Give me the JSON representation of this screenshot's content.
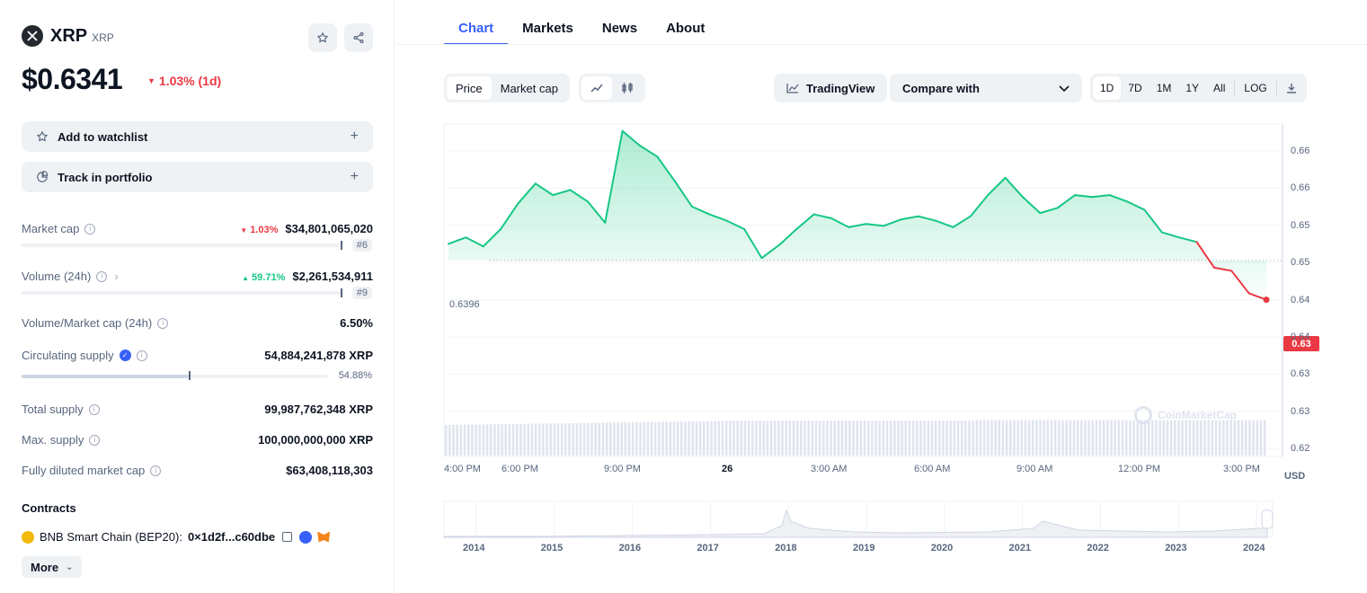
{
  "coin": {
    "name": "XRP",
    "symbol": "XRP",
    "logo_icon": "xrp-logo-icon"
  },
  "price": {
    "value": "$0.6341",
    "change": "1.03% (1d)",
    "direction": "down"
  },
  "actions": {
    "watchlist": "Add to watchlist",
    "portfolio": "Track in portfolio",
    "plus": "+"
  },
  "stats": {
    "market_cap": {
      "label": "Market cap",
      "change": "1.03%",
      "value": "$34,801,065,020",
      "rank": "#6"
    },
    "volume": {
      "label": "Volume (24h)",
      "change": "59.71%",
      "value": "$2,261,534,911",
      "rank": "#9"
    },
    "vol_mcap": {
      "label": "Volume/Market cap (24h)",
      "value": "6.50%"
    },
    "circulating": {
      "label": "Circulating supply",
      "value": "54,884,241,878 XRP",
      "percent": "54.88%",
      "fraction": 0.5488
    },
    "total_supply": {
      "label": "Total supply",
      "value": "99,987,762,348 XRP"
    },
    "max_supply": {
      "label": "Max. supply",
      "value": "100,000,000,000 XRP"
    },
    "fdv": {
      "label": "Fully diluted market cap",
      "value": "$63,408,118,303"
    }
  },
  "contracts": {
    "title": "Contracts",
    "chain": "BNB Smart Chain (BEP20):",
    "address": "0×1d2f...c60dbe",
    "more": "More"
  },
  "tabs": [
    "Chart",
    "Markets",
    "News",
    "About"
  ],
  "toolbar": {
    "price": "Price",
    "market_cap": "Market cap",
    "tradingview": "TradingView",
    "compare": "Compare with",
    "ranges": [
      "1D",
      "7D",
      "1M",
      "1Y",
      "All"
    ],
    "log": "LOG"
  },
  "chart": {
    "reference_label": "0.6396",
    "current_label": "0.63",
    "currency": "USD",
    "watermark": "CoinMarketCap",
    "y_ticks": [
      "0.66",
      "0.66",
      "0.65",
      "0.65",
      "0.64",
      "0.64",
      "0.63",
      "0.63",
      "0.62"
    ],
    "x_ticks": [
      "4:00 PM",
      "6:00 PM",
      "9:00 PM",
      "26",
      "3:00 AM",
      "6:00 AM",
      "9:00 AM",
      "12:00 PM",
      "3:00 PM"
    ],
    "years": [
      "2014",
      "2015",
      "2016",
      "2017",
      "2018",
      "2019",
      "2020",
      "2021",
      "2022",
      "2023",
      "2024"
    ],
    "colors": {
      "up": "#16c784",
      "down": "#ea3943",
      "accent": "#3861fb"
    }
  },
  "chart_data": {
    "type": "line",
    "xlabel": "",
    "ylabel": "USD",
    "ylim": [
      0.62,
      0.662
    ],
    "reference": 0.6396,
    "x": [
      "4:00 PM",
      "4:30 PM",
      "5:00 PM",
      "5:30 PM",
      "6:00 PM",
      "6:30 PM",
      "7:00 PM",
      "7:30 PM",
      "8:00 PM",
      "8:30 PM",
      "9:00 PM",
      "9:30 PM",
      "10:00 PM",
      "10:30 PM",
      "11:00 PM",
      "11:30 PM",
      "12:00 AM",
      "12:30 AM",
      "1:00 AM",
      "1:30 AM",
      "2:00 AM",
      "2:30 AM",
      "3:00 AM",
      "3:30 AM",
      "4:00 AM",
      "4:30 AM",
      "5:00 AM",
      "5:30 AM",
      "6:00 AM",
      "6:30 AM",
      "7:00 AM",
      "7:30 AM",
      "8:00 AM",
      "8:30 AM",
      "9:00 AM",
      "9:30 AM",
      "10:00 AM",
      "10:30 AM",
      "11:00 AM",
      "11:30 AM",
      "12:00 PM",
      "12:30 PM",
      "1:00 PM",
      "1:30 PM",
      "2:00 PM",
      "2:30 PM",
      "3:00 PM",
      "3:10 PM"
    ],
    "series": [
      {
        "values": [
          0.6422,
          0.6432,
          0.6418,
          0.6445,
          0.6485,
          0.6516,
          0.6498,
          0.6506,
          0.6488,
          0.6455,
          0.6598,
          0.6575,
          0.6558,
          0.652,
          0.648,
          0.6468,
          0.6458,
          0.6445,
          0.64,
          0.642,
          0.6445,
          0.6468,
          0.6462,
          0.6448,
          0.6453,
          0.645,
          0.646,
          0.6465,
          0.6458,
          0.6448,
          0.6465,
          0.6498,
          0.6525,
          0.6495,
          0.647,
          0.6478,
          0.6498,
          0.6495,
          0.6498,
          0.6488,
          0.6475,
          0.644,
          0.6432,
          0.6425,
          0.6385,
          0.638,
          0.6345,
          0.6335
        ]
      }
    ]
  }
}
